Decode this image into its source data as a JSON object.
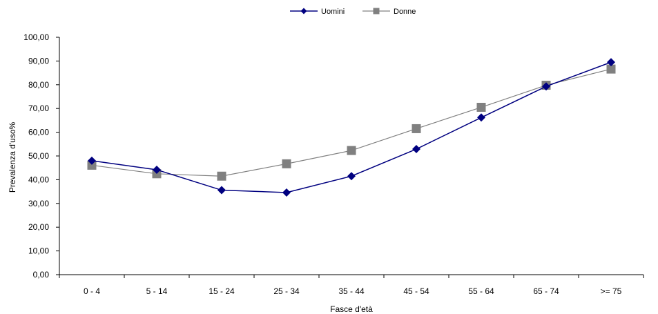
{
  "chart_data": {
    "type": "line",
    "title": "",
    "xlabel": "Fasce d'età",
    "ylabel": "Prevalenza d'uso%",
    "categories": [
      "0 - 4",
      "5 - 14",
      "15 - 24",
      "25 - 34",
      "35 - 44",
      "45 - 54",
      "55 - 64",
      "65 - 74",
      ">= 75"
    ],
    "ylim": [
      0,
      100
    ],
    "yticks": [
      "0,00",
      "10,00",
      "20,00",
      "30,00",
      "40,00",
      "50,00",
      "60,00",
      "70,00",
      "80,00",
      "90,00",
      "100,00"
    ],
    "grid": false,
    "legend_position": "top-center",
    "series": [
      {
        "name": "Uomini",
        "color": "#000080",
        "marker": "diamond",
        "values": [
          48.0,
          44.2,
          35.6,
          34.6,
          41.5,
          52.9,
          66.2,
          79.3,
          89.5
        ]
      },
      {
        "name": "Donne",
        "color": "#808080",
        "marker": "square",
        "values": [
          46.1,
          42.5,
          41.5,
          46.7,
          52.3,
          61.5,
          70.5,
          79.8,
          86.6
        ]
      }
    ]
  }
}
